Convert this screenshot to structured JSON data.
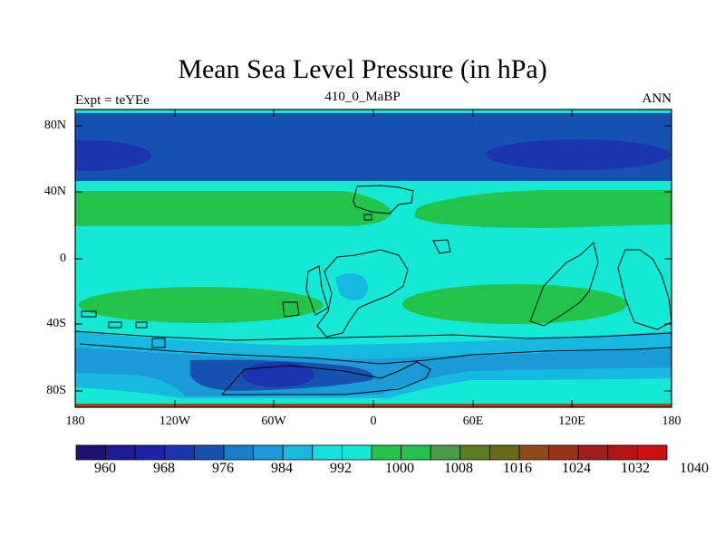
{
  "title": "Mean Sea Level Pressure (in hPa)",
  "left_label": "Expt = teYEe",
  "center_label": "410_0_MaBP",
  "right_label": "ANN",
  "map": {
    "y_ticks": [
      "80N",
      "40N",
      "0",
      "40S",
      "80S"
    ],
    "x_ticks": [
      "180",
      "120W",
      "60W",
      "0",
      "60E",
      "120E",
      "180"
    ]
  },
  "colorbar": {
    "colors": [
      "#1e1375",
      "#1f1b93",
      "#1e23a6",
      "#1b34ad",
      "#1653b0",
      "#177fc7",
      "#1a9ad7",
      "#17b9e3",
      "#15e0e2",
      "#14e9d5",
      "#24c44a",
      "#23c34e",
      "#4a9a4a",
      "#597d1f",
      "#6a6b18",
      "#8e4a18",
      "#9a3218",
      "#a41b1b",
      "#b51414",
      "#cc1010"
    ],
    "labels": [
      "960",
      "968",
      "976",
      "984",
      "992",
      "1000",
      "1008",
      "1016",
      "1024",
      "1032",
      "1040"
    ]
  }
}
